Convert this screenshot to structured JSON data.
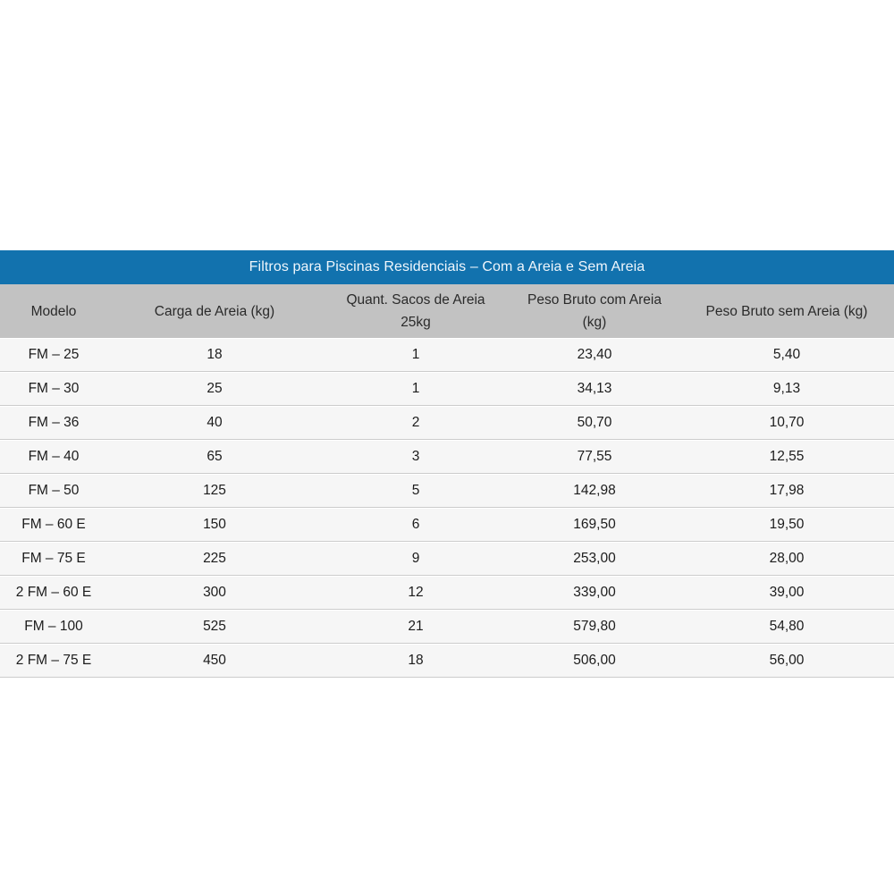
{
  "colors": {
    "title_bar_bg": "#1272ae",
    "title_text": "#eff6fc",
    "header_bg": "#c2c2c2",
    "header_text": "#2a2a2a",
    "row_bg": "#f6f6f6",
    "row_border": "#cccccc",
    "cell_text": "#1c1c1c",
    "page_bg": "#ffffff"
  },
  "table": {
    "title": "Filtros para Piscinas Residenciais – Com a Areia e Sem Areia",
    "columns": [
      {
        "line1": "Modelo",
        "line2": ""
      },
      {
        "line1": "Carga de Areia (kg)",
        "line2": ""
      },
      {
        "line1": "Quant. Sacos de Areia",
        "line2": "25kg"
      },
      {
        "line1": "Peso Bruto com Areia",
        "line2": "(kg)"
      },
      {
        "line1": "Peso Bruto sem Areia (kg)",
        "line2": ""
      }
    ],
    "rows": [
      [
        "FM – 25",
        "18",
        "1",
        "23,40",
        "5,40"
      ],
      [
        "FM – 30",
        "25",
        "1",
        "34,13",
        "9,13"
      ],
      [
        "FM – 36",
        "40",
        "2",
        "50,70",
        "10,70"
      ],
      [
        "FM – 40",
        "65",
        "3",
        "77,55",
        "12,55"
      ],
      [
        "FM – 50",
        "125",
        "5",
        "142,98",
        "17,98"
      ],
      [
        "FM – 60 E",
        "150",
        "6",
        "169,50",
        "19,50"
      ],
      [
        "FM – 75 E",
        "225",
        "9",
        "253,00",
        "28,00"
      ],
      [
        "2 FM – 60 E",
        "300",
        "12",
        "339,00",
        "39,00"
      ],
      [
        "FM – 100",
        "525",
        "21",
        "579,80",
        "54,80"
      ],
      [
        "2 FM – 75 E",
        "450",
        "18",
        "506,00",
        "56,00"
      ]
    ]
  }
}
